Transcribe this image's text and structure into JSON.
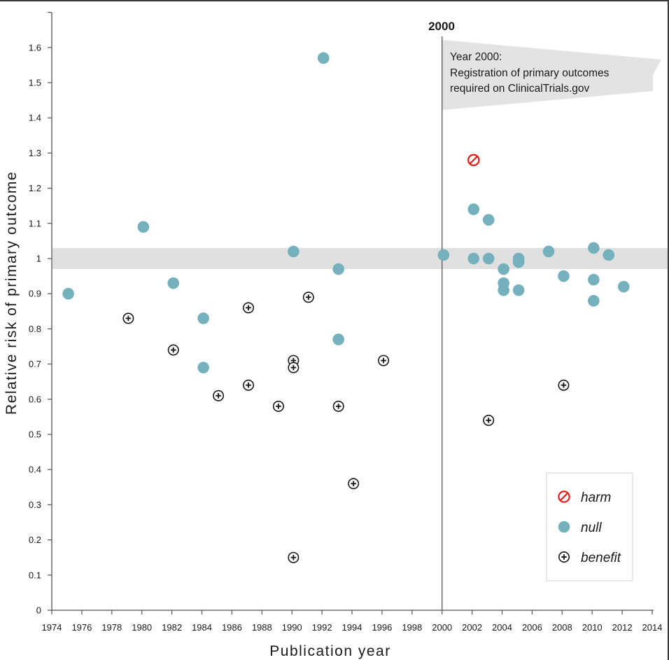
{
  "chart_data": {
    "type": "scatter",
    "title": "",
    "xlabel": "Publication year",
    "ylabel": "Relative risk of primary outcome",
    "xlim": [
      1974,
      2014
    ],
    "ylim": [
      0,
      1.7
    ],
    "x_ticks": [
      "1974",
      "1976",
      "1978",
      "1980",
      "1982",
      "1984",
      "1986",
      "1988",
      "1990",
      "1992",
      "1994",
      "1996",
      "1998",
      "2000",
      "2002",
      "2004",
      "2006",
      "2008",
      "2010",
      "2012",
      "2014"
    ],
    "y_ticks": [
      "0",
      "0.1",
      "0.2",
      "0.3",
      "0.4",
      "0.5",
      "0.6",
      "0.7",
      "0.8",
      "0.9",
      "1",
      "1.1",
      "1.2",
      "1.3",
      "1.4",
      "1.5",
      "1.6"
    ],
    "null_band": [
      0.97,
      1.03
    ],
    "reference_line": {
      "x": 2000,
      "label": "2000"
    },
    "annotation": {
      "lines": [
        "Year 2000:",
        "Registration of primary outcomes",
        "required on ClinicalTrials.gov"
      ]
    },
    "legend": {
      "position": "bottom-right",
      "entries": [
        {
          "key": "harm",
          "label": "harm"
        },
        {
          "key": "null",
          "label": "null"
        },
        {
          "key": "benefit",
          "label": "benefit"
        }
      ]
    },
    "series": [
      {
        "name": "harm",
        "color": "#e0201c",
        "points": [
          {
            "x": 2002,
            "y": 1.28
          }
        ]
      },
      {
        "name": "null",
        "color": "#74b1bd",
        "points": [
          {
            "x": 1975,
            "y": 0.9
          },
          {
            "x": 1980,
            "y": 1.09
          },
          {
            "x": 1982,
            "y": 0.93
          },
          {
            "x": 1984,
            "y": 0.83
          },
          {
            "x": 1984,
            "y": 0.69
          },
          {
            "x": 1990,
            "y": 1.02
          },
          {
            "x": 1992,
            "y": 1.57
          },
          {
            "x": 1993,
            "y": 0.97
          },
          {
            "x": 1993,
            "y": 0.77
          },
          {
            "x": 2000,
            "y": 1.01
          },
          {
            "x": 2002,
            "y": 1.14
          },
          {
            "x": 2002,
            "y": 1.0
          },
          {
            "x": 2003,
            "y": 1.11
          },
          {
            "x": 2003,
            "y": 1.0
          },
          {
            "x": 2004,
            "y": 0.97
          },
          {
            "x": 2004,
            "y": 0.93
          },
          {
            "x": 2004,
            "y": 0.91
          },
          {
            "x": 2005,
            "y": 1.0
          },
          {
            "x": 2005,
            "y": 0.99
          },
          {
            "x": 2005,
            "y": 0.91
          },
          {
            "x": 2007,
            "y": 1.02
          },
          {
            "x": 2008,
            "y": 0.95
          },
          {
            "x": 2010,
            "y": 1.03
          },
          {
            "x": 2010,
            "y": 0.94
          },
          {
            "x": 2010,
            "y": 0.88
          },
          {
            "x": 2011,
            "y": 1.01
          },
          {
            "x": 2012,
            "y": 0.92
          }
        ]
      },
      {
        "name": "benefit",
        "color": "#1a1a1a",
        "points": [
          {
            "x": 1979,
            "y": 0.83
          },
          {
            "x": 1982,
            "y": 0.74
          },
          {
            "x": 1985,
            "y": 0.61
          },
          {
            "x": 1987,
            "y": 0.86
          },
          {
            "x": 1987,
            "y": 0.64
          },
          {
            "x": 1989,
            "y": 0.58
          },
          {
            "x": 1990,
            "y": 0.71
          },
          {
            "x": 1990,
            "y": 0.69
          },
          {
            "x": 1990,
            "y": 0.15
          },
          {
            "x": 1991,
            "y": 0.89
          },
          {
            "x": 1993,
            "y": 0.58
          },
          {
            "x": 1994,
            "y": 0.36
          },
          {
            "x": 1996,
            "y": 0.71
          },
          {
            "x": 2003,
            "y": 0.54
          },
          {
            "x": 2008,
            "y": 0.64
          }
        ]
      }
    ]
  },
  "colors": {
    "null_marker": "#74b1bd",
    "harm_marker": "#e0201c",
    "benefit_marker": "#1a1a1a",
    "band": "#e0e0e0",
    "axis": "#555555"
  }
}
